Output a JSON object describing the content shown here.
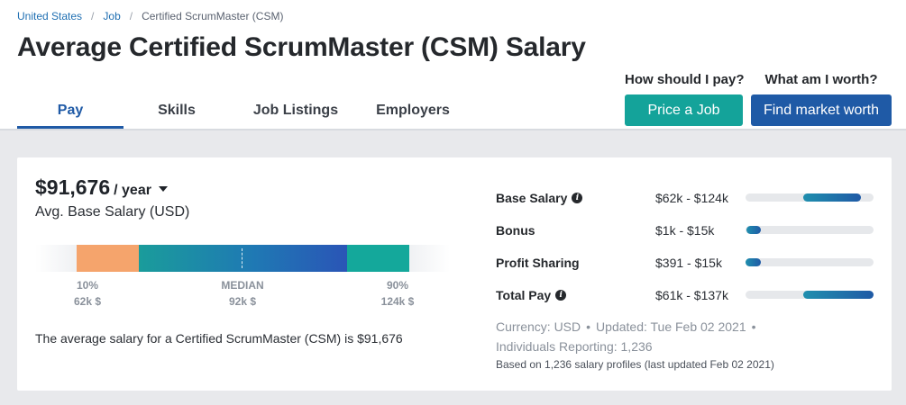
{
  "breadcrumb": {
    "items": [
      "United States",
      "Job"
    ],
    "separator": "/",
    "current": "Certified ScrumMaster (CSM)"
  },
  "page_title": "Average Certified ScrumMaster (CSM) Salary",
  "tabs": [
    {
      "label": "Pay",
      "active": true
    },
    {
      "label": "Skills",
      "active": false
    },
    {
      "label": "Job Listings",
      "active": false
    },
    {
      "label": "Employers",
      "active": false
    }
  ],
  "cta": {
    "price_question": "How should I pay?",
    "price_button": "Price a Job",
    "market_question": "What am I worth?",
    "market_button": "Find market worth"
  },
  "salary": {
    "amount": "$91,676",
    "period": "/ year",
    "subtitle": "Avg. Base Salary (USD)",
    "summary": "The average salary for a Certified ScrumMaster (CSM) is $91,676"
  },
  "distribution": {
    "p10_label": "10%",
    "p10_value": "62k $",
    "median_label": "MEDIAN",
    "median_value": "92k $",
    "p90_label": "90%",
    "p90_value": "124k $"
  },
  "compensation": [
    {
      "label": "Base Salary",
      "info": true,
      "range": "$62k - $124k",
      "fill_start": 0.45,
      "fill_end": 0.9
    },
    {
      "label": "Bonus",
      "info": false,
      "range": "$1k - $15k",
      "fill_start": 0.01,
      "fill_end": 0.12
    },
    {
      "label": "Profit Sharing",
      "info": false,
      "range": "$391 - $15k",
      "fill_start": 0.0,
      "fill_end": 0.12
    },
    {
      "label": "Total Pay",
      "info": true,
      "range": "$61k - $137k",
      "fill_start": 0.45,
      "fill_end": 1.0
    }
  ],
  "meta": {
    "currency": "Currency: USD",
    "updated": "Updated: Tue Feb 02 2021",
    "individuals": "Individuals Reporting: 1,236",
    "based_on": "Based on 1,236 salary profiles (last updated Feb 02 2021)"
  },
  "colors": {
    "primary_blue": "#1f5aa6",
    "teal": "#14a39a",
    "orange": "#f5a46c"
  }
}
